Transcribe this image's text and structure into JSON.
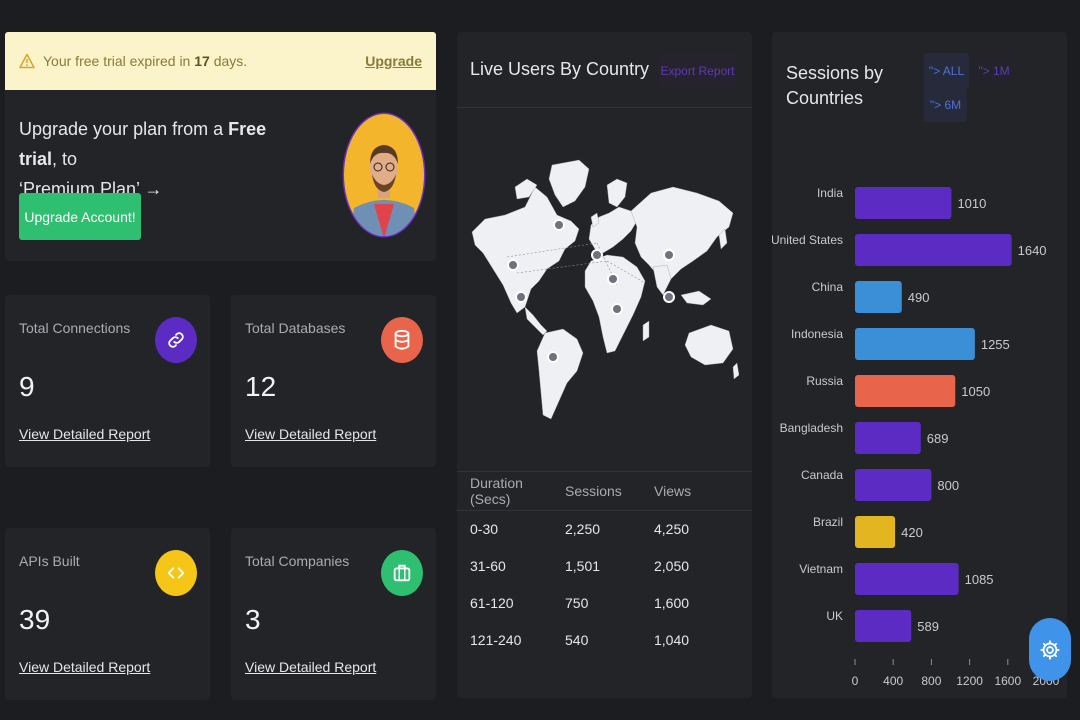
{
  "banner": {
    "prefix": "Your free trial expired in ",
    "days": "17",
    "suffix": " days.",
    "link": "Upgrade"
  },
  "upgrade": {
    "line1_prefix": "Upgrade your plan from a ",
    "line1_bold": "Free trial",
    "line1_suffix": ", to",
    "line2": "‘Premium Plan’ →",
    "button": "Upgrade Account!"
  },
  "stats": [
    {
      "label": "Total Connections",
      "value": "9",
      "link": "View Detailed Report",
      "icon": "link-icon",
      "color": "#5b2bc4"
    },
    {
      "label": "Total Databases",
      "value": "12",
      "link": "View Detailed Report",
      "icon": "database-icon",
      "color": "#e8644a"
    },
    {
      "label": "APIs Built",
      "value": "39",
      "link": "View Detailed Report",
      "icon": "code-icon",
      "color": "#f5c518"
    },
    {
      "label": "Total Companies",
      "value": "3",
      "link": "View Detailed Report",
      "icon": "briefcase-icon",
      "color": "#2fbf71"
    }
  ],
  "map_card": {
    "title": "Live Users By Country",
    "export": "Export Report",
    "table": {
      "headers": [
        "Duration (Secs)",
        "Sessions",
        "Views"
      ],
      "rows": [
        [
          "0-30",
          "2,250",
          "4,250"
        ],
        [
          "31-60",
          "1,501",
          "2,050"
        ],
        [
          "61-120",
          "750",
          "1,600"
        ],
        [
          "121-240",
          "540",
          "1,040"
        ]
      ]
    }
  },
  "sessions_card": {
    "title": "Sessions by Countries",
    "filters": [
      "\"> ALL",
      "\"> 1M",
      "\"> 6M"
    ]
  },
  "chart_data": {
    "type": "bar",
    "orientation": "horizontal",
    "categories": [
      "India",
      "United States",
      "China",
      "Indonesia",
      "Russia",
      "Bangladesh",
      "Canada",
      "Brazil",
      "Vietnam",
      "UK"
    ],
    "values": [
      1010,
      1640,
      490,
      1255,
      1050,
      689,
      800,
      420,
      1085,
      589
    ],
    "colors": [
      "#5b2bc4",
      "#5b2bc4",
      "#3a8fd6",
      "#3a8fd6",
      "#e8644a",
      "#5b2bc4",
      "#5b2bc4",
      "#e3b520",
      "#5b2bc4",
      "#5b2bc4"
    ],
    "xticks": [
      "0",
      "400",
      "800",
      "1200",
      "1600",
      "2000"
    ],
    "xlim": [
      0,
      2000
    ]
  }
}
